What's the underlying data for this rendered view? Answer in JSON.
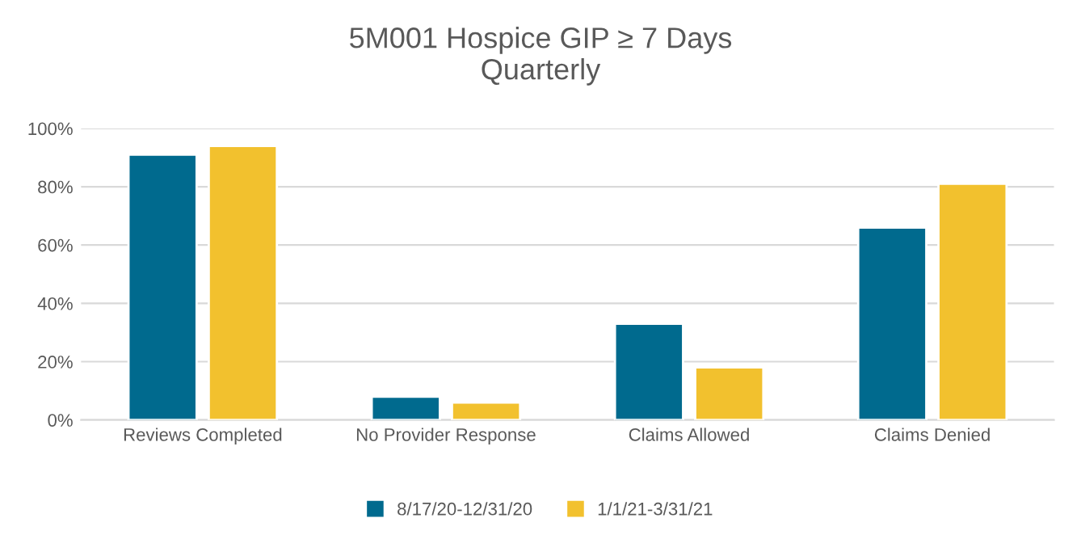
{
  "chart_data": {
    "type": "bar",
    "title": "5M001 Hospice GIP ≥ 7 Days\nQuarterly",
    "categories": [
      "Reviews Completed",
      "No Provider Response",
      "Claims Allowed",
      "Claims Denied"
    ],
    "series": [
      {
        "name": "8/17/20-12/31/20",
        "color": "#006a8e",
        "values": [
          91,
          8,
          33,
          66
        ]
      },
      {
        "name": "1/1/21-3/31/21",
        "color": "#f2c12e",
        "values": [
          94,
          6,
          18,
          81
        ]
      }
    ],
    "ylim": [
      0,
      100
    ],
    "yticks": [
      {
        "value": 0,
        "label": "0%"
      },
      {
        "value": 20,
        "label": "20%"
      },
      {
        "value": 40,
        "label": "40%"
      },
      {
        "value": 60,
        "label": "60%"
      },
      {
        "value": 80,
        "label": "80%"
      },
      {
        "value": 100,
        "label": "100%"
      }
    ],
    "grid": "y",
    "legend": "bottom"
  }
}
